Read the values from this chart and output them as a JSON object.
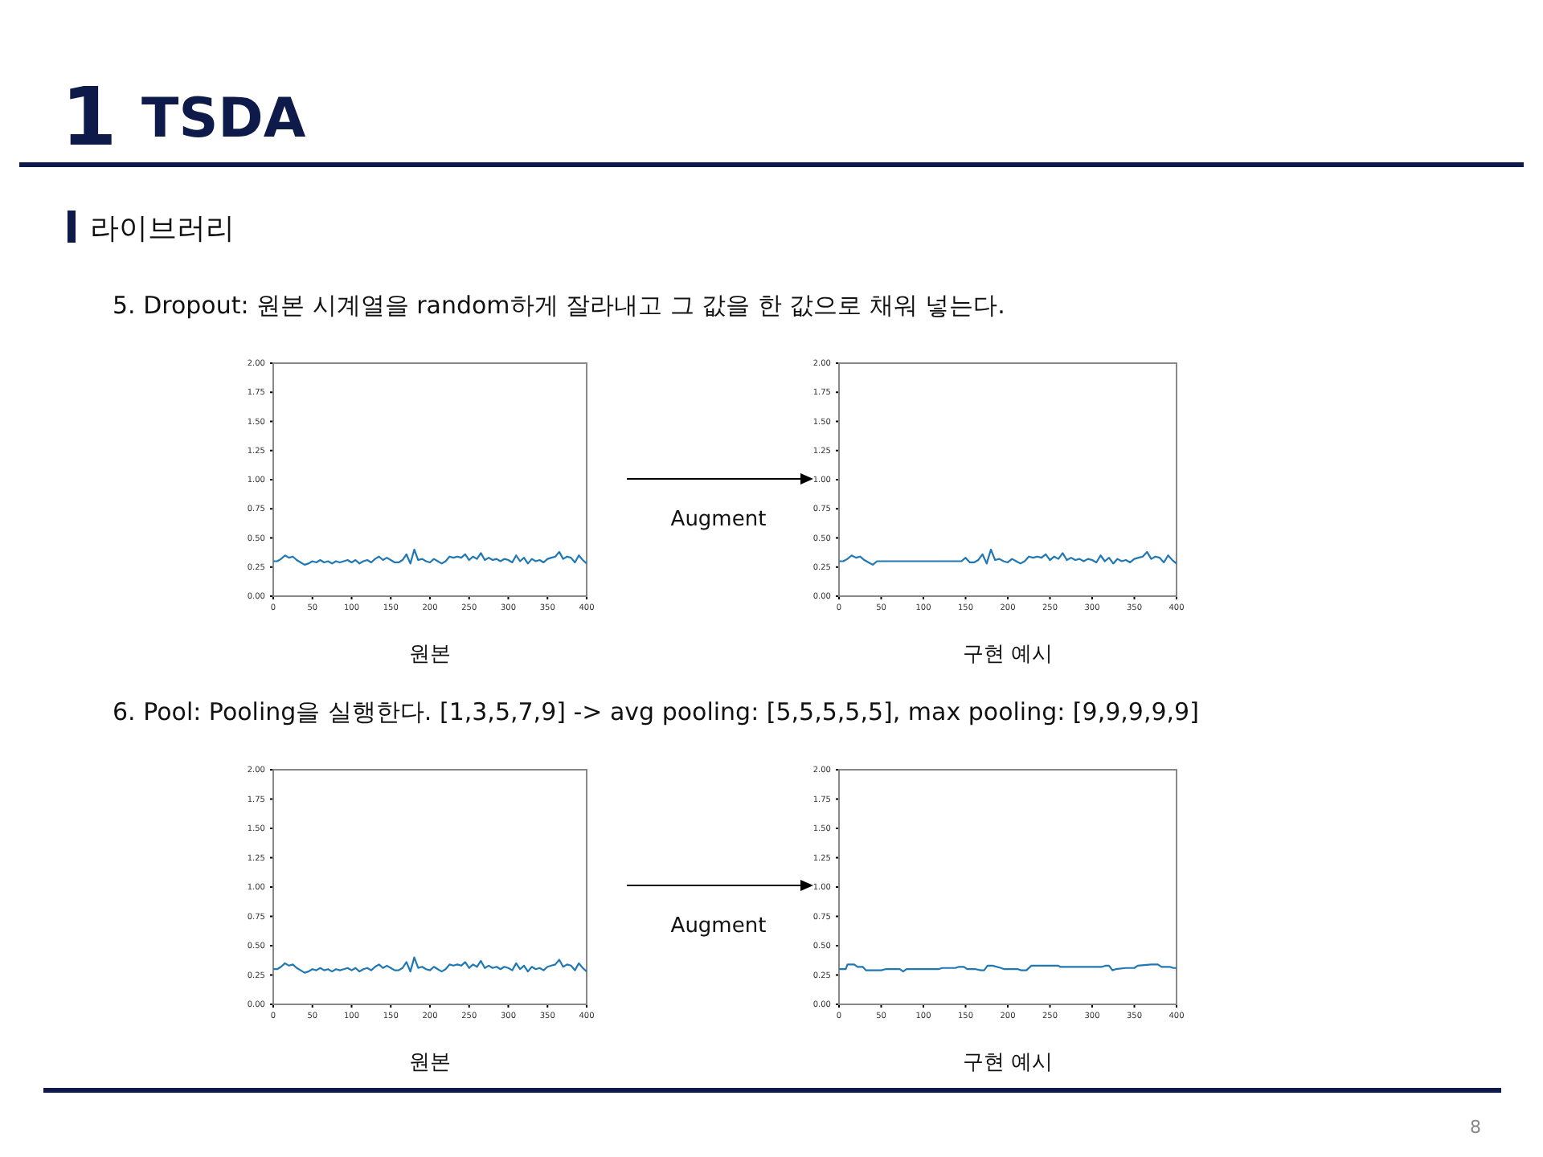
{
  "chart_data": [
    {
      "type": "other",
      "title": "TSDA",
      "subtitle": "라이브러리",
      "annotations": [
        "1",
        "8"
      ]
    },
    {
      "type": "line",
      "title": "5. Dropout: 원본 시계열을 random하게 잘라내고 그 값을 한 값으로 채워 넣는다.",
      "xlabel": "원본",
      "xlim": [
        0,
        400
      ],
      "ylim": [
        0,
        2
      ],
      "xticks": [
        0,
        50,
        100,
        150,
        200,
        250,
        300,
        350,
        400
      ],
      "yticks": [
        {
          "value": 0,
          "label": "0.00"
        },
        {
          "value": 0.25,
          "label": "0.25"
        },
        {
          "value": 0.5,
          "label": "0.50"
        },
        {
          "value": 0.75,
          "label": "0.75"
        },
        {
          "value": 1,
          "label": "1.00"
        },
        {
          "value": 1.25,
          "label": "1.25"
        },
        {
          "value": 1.5,
          "label": "1.50"
        },
        {
          "value": 1.75,
          "label": "1.75"
        },
        {
          "value": 2,
          "label": "2.00"
        }
      ],
      "x": [
        0,
        5,
        10,
        15,
        20,
        25,
        30,
        35,
        40,
        45,
        50,
        55,
        60,
        65,
        70,
        75,
        80,
        85,
        90,
        95,
        100,
        105,
        110,
        115,
        120,
        125,
        130,
        135,
        140,
        145,
        150,
        155,
        160,
        165,
        170,
        175,
        180,
        185,
        190,
        195,
        200,
        205,
        210,
        215,
        220,
        225,
        230,
        235,
        240,
        245,
        250,
        255,
        260,
        265,
        270,
        275,
        280,
        285,
        290,
        295,
        300,
        305,
        310,
        315,
        320,
        325,
        330,
        335,
        340,
        345,
        350,
        355,
        360,
        365,
        370,
        375,
        380,
        385,
        390,
        395,
        400
      ],
      "series": [
        {
          "color": "#1f77b4",
          "values": [
            0.3,
            0.3,
            0.32,
            0.35,
            0.33,
            0.34,
            0.31,
            0.29,
            0.27,
            0.28,
            0.3,
            0.29,
            0.31,
            0.29,
            0.3,
            0.28,
            0.3,
            0.29,
            0.3,
            0.31,
            0.29,
            0.31,
            0.28,
            0.3,
            0.31,
            0.29,
            0.32,
            0.34,
            0.31,
            0.33,
            0.31,
            0.29,
            0.29,
            0.31,
            0.36,
            0.28,
            0.4,
            0.31,
            0.32,
            0.3,
            0.29,
            0.32,
            0.3,
            0.28,
            0.3,
            0.34,
            0.33,
            0.34,
            0.33,
            0.36,
            0.31,
            0.34,
            0.32,
            0.37,
            0.31,
            0.33,
            0.31,
            0.32,
            0.3,
            0.32,
            0.31,
            0.29,
            0.35,
            0.3,
            0.33,
            0.28,
            0.32,
            0.3,
            0.31,
            0.29,
            0.32,
            0.33,
            0.34,
            0.38,
            0.32,
            0.34,
            0.33,
            0.29,
            0.35,
            0.31,
            0.28
          ]
        }
      ]
    },
    {
      "type": "line",
      "xlabel": "구현 예시",
      "annotations": [
        "Augment"
      ],
      "xlim": [
        0,
        400
      ],
      "ylim": [
        0,
        2
      ],
      "xticks": [
        0,
        50,
        100,
        150,
        200,
        250,
        300,
        350,
        400
      ],
      "yticks": [
        {
          "value": 0,
          "label": "0.00"
        },
        {
          "value": 0.25,
          "label": "0.25"
        },
        {
          "value": 0.5,
          "label": "0.50"
        },
        {
          "value": 0.75,
          "label": "0.75"
        },
        {
          "value": 1,
          "label": "1.00"
        },
        {
          "value": 1.25,
          "label": "1.25"
        },
        {
          "value": 1.5,
          "label": "1.50"
        },
        {
          "value": 1.75,
          "label": "1.75"
        },
        {
          "value": 2,
          "label": "2.00"
        }
      ],
      "x": [
        0,
        5,
        10,
        15,
        20,
        25,
        30,
        35,
        40,
        45,
        50,
        55,
        60,
        65,
        70,
        75,
        80,
        85,
        90,
        95,
        100,
        105,
        110,
        115,
        120,
        125,
        130,
        135,
        140,
        145,
        150,
        155,
        160,
        165,
        170,
        175,
        180,
        185,
        190,
        195,
        200,
        205,
        210,
        215,
        220,
        225,
        230,
        235,
        240,
        245,
        250,
        255,
        260,
        265,
        270,
        275,
        280,
        285,
        290,
        295,
        300,
        305,
        310,
        315,
        320,
        325,
        330,
        335,
        340,
        345,
        350,
        355,
        360,
        365,
        370,
        375,
        380,
        385,
        390,
        395,
        400
      ],
      "series": [
        {
          "color": "#1f77b4",
          "values": [
            0.3,
            0.3,
            0.32,
            0.35,
            0.33,
            0.34,
            0.31,
            0.29,
            0.27,
            0.3,
            0.3,
            0.3,
            0.3,
            0.3,
            0.3,
            0.3,
            0.3,
            0.3,
            0.3,
            0.3,
            0.3,
            0.3,
            0.3,
            0.3,
            0.3,
            0.3,
            0.3,
            0.3,
            0.3,
            0.3,
            0.33,
            0.29,
            0.29,
            0.31,
            0.36,
            0.28,
            0.4,
            0.31,
            0.32,
            0.3,
            0.29,
            0.32,
            0.3,
            0.28,
            0.3,
            0.34,
            0.33,
            0.34,
            0.33,
            0.36,
            0.31,
            0.34,
            0.32,
            0.37,
            0.31,
            0.33,
            0.31,
            0.32,
            0.3,
            0.32,
            0.31,
            0.29,
            0.35,
            0.3,
            0.33,
            0.28,
            0.32,
            0.3,
            0.31,
            0.29,
            0.32,
            0.33,
            0.34,
            0.38,
            0.32,
            0.34,
            0.33,
            0.29,
            0.35,
            0.31,
            0.28
          ]
        }
      ]
    },
    {
      "type": "line",
      "title": "6. Pool: Pooling을 실행한다. [1,3,5,7,9] -> avg pooling: [5,5,5,5,5], max pooling: [9,9,9,9,9]",
      "xlabel": "원본",
      "xlim": [
        0,
        400
      ],
      "ylim": [
        0,
        2
      ],
      "xticks": [
        0,
        50,
        100,
        150,
        200,
        250,
        300,
        350,
        400
      ],
      "yticks": [
        {
          "value": 0,
          "label": "0.00"
        },
        {
          "value": 0.25,
          "label": "0.25"
        },
        {
          "value": 0.5,
          "label": "0.50"
        },
        {
          "value": 0.75,
          "label": "0.75"
        },
        {
          "value": 1,
          "label": "1.00"
        },
        {
          "value": 1.25,
          "label": "1.25"
        },
        {
          "value": 1.5,
          "label": "1.50"
        },
        {
          "value": 1.75,
          "label": "1.75"
        },
        {
          "value": 2,
          "label": "2.00"
        }
      ],
      "x": [
        0,
        5,
        10,
        15,
        20,
        25,
        30,
        35,
        40,
        45,
        50,
        55,
        60,
        65,
        70,
        75,
        80,
        85,
        90,
        95,
        100,
        105,
        110,
        115,
        120,
        125,
        130,
        135,
        140,
        145,
        150,
        155,
        160,
        165,
        170,
        175,
        180,
        185,
        190,
        195,
        200,
        205,
        210,
        215,
        220,
        225,
        230,
        235,
        240,
        245,
        250,
        255,
        260,
        265,
        270,
        275,
        280,
        285,
        290,
        295,
        300,
        305,
        310,
        315,
        320,
        325,
        330,
        335,
        340,
        345,
        350,
        355,
        360,
        365,
        370,
        375,
        380,
        385,
        390,
        395,
        400
      ],
      "series": [
        {
          "color": "#1f77b4",
          "values": [
            0.3,
            0.3,
            0.32,
            0.35,
            0.33,
            0.34,
            0.31,
            0.29,
            0.27,
            0.28,
            0.3,
            0.29,
            0.31,
            0.29,
            0.3,
            0.28,
            0.3,
            0.29,
            0.3,
            0.31,
            0.29,
            0.31,
            0.28,
            0.3,
            0.31,
            0.29,
            0.32,
            0.34,
            0.31,
            0.33,
            0.31,
            0.29,
            0.29,
            0.31,
            0.36,
            0.28,
            0.4,
            0.31,
            0.32,
            0.3,
            0.29,
            0.32,
            0.3,
            0.28,
            0.3,
            0.34,
            0.33,
            0.34,
            0.33,
            0.36,
            0.31,
            0.34,
            0.32,
            0.37,
            0.31,
            0.33,
            0.31,
            0.32,
            0.3,
            0.32,
            0.31,
            0.29,
            0.35,
            0.3,
            0.33,
            0.28,
            0.32,
            0.3,
            0.31,
            0.29,
            0.32,
            0.33,
            0.34,
            0.38,
            0.32,
            0.34,
            0.33,
            0.29,
            0.35,
            0.31,
            0.28
          ]
        }
      ]
    },
    {
      "type": "line",
      "xlabel": "구현 예시",
      "annotations": [
        "Augment"
      ],
      "xlim": [
        0,
        400
      ],
      "ylim": [
        0,
        2
      ],
      "xticks": [
        0,
        50,
        100,
        150,
        200,
        250,
        300,
        350,
        400
      ],
      "yticks": [
        {
          "value": 0,
          "label": "0.00"
        },
        {
          "value": 0.25,
          "label": "0.25"
        },
        {
          "value": 0.5,
          "label": "0.50"
        },
        {
          "value": 0.75,
          "label": "0.75"
        },
        {
          "value": 1,
          "label": "1.00"
        },
        {
          "value": 1.25,
          "label": "1.25"
        },
        {
          "value": 1.5,
          "label": "1.50"
        },
        {
          "value": 1.75,
          "label": "1.75"
        },
        {
          "value": 2,
          "label": "2.00"
        }
      ],
      "x": [
        0,
        8,
        10,
        18,
        22,
        28,
        32,
        50,
        55,
        72,
        76,
        80,
        118,
        122,
        138,
        142,
        148,
        152,
        162,
        168,
        172,
        176,
        182,
        192,
        196,
        212,
        216,
        222,
        228,
        260,
        262,
        300,
        312,
        316,
        320,
        324,
        328,
        340,
        350,
        354,
        370,
        378,
        382,
        392,
        396,
        400
      ],
      "series": [
        {
          "color": "#1f77b4",
          "values": [
            0.3,
            0.3,
            0.34,
            0.34,
            0.32,
            0.32,
            0.29,
            0.29,
            0.3,
            0.3,
            0.28,
            0.3,
            0.3,
            0.31,
            0.31,
            0.32,
            0.32,
            0.3,
            0.3,
            0.29,
            0.29,
            0.33,
            0.33,
            0.31,
            0.3,
            0.3,
            0.29,
            0.29,
            0.33,
            0.33,
            0.32,
            0.32,
            0.32,
            0.33,
            0.33,
            0.29,
            0.3,
            0.31,
            0.31,
            0.33,
            0.34,
            0.34,
            0.32,
            0.32,
            0.31,
            0.31
          ]
        }
      ]
    }
  ]
}
